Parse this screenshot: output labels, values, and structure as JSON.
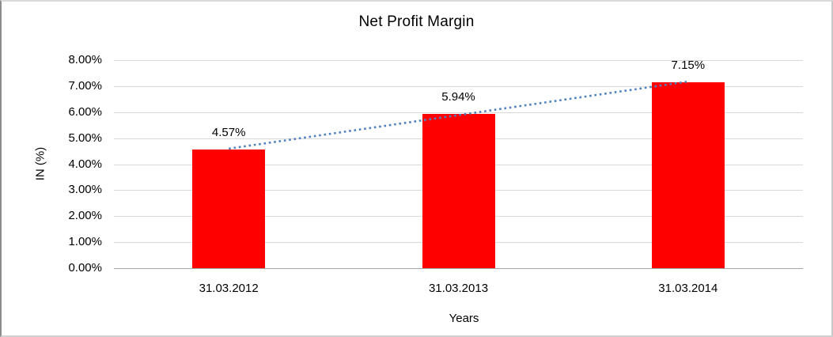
{
  "chart_data": {
    "type": "bar",
    "title": "Net Profit Margin",
    "categories": [
      "31.03.2012",
      "31.03.2013",
      "31.03.2014"
    ],
    "values": [
      4.57,
      5.94,
      7.15
    ],
    "data_labels": [
      "4.57%",
      "5.94%",
      "7.15%"
    ],
    "xlabel": "Years",
    "ylabel": "IN (%)",
    "ylim": [
      0,
      8
    ],
    "ytick_step": 1,
    "ytick_labels": [
      "0.00%",
      "1.00%",
      "2.00%",
      "3.00%",
      "4.00%",
      "5.00%",
      "6.00%",
      "7.00%",
      "8.00%"
    ],
    "grid": true,
    "legend": "none",
    "trendline": {
      "type": "linear",
      "style": "dotted",
      "color": "#4F81BD"
    },
    "colors": {
      "bar": "#FF0000",
      "gridline": "#D9D9D9",
      "axis_line": "#A6A6A6",
      "text": "#000000",
      "frame_border": "#8C8C8C"
    }
  }
}
